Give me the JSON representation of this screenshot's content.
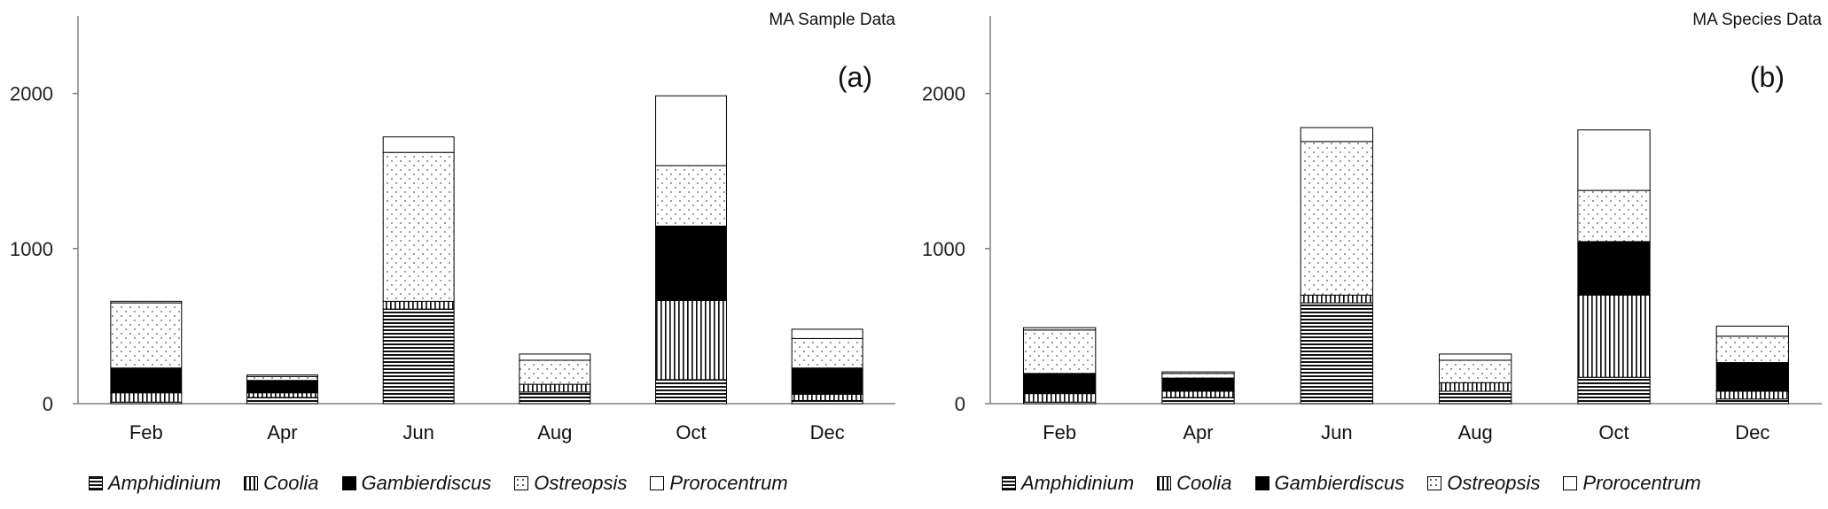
{
  "chart_data": [
    {
      "type": "bar",
      "stacked": true,
      "title": "MA Sample Data",
      "panel_label": "(a)",
      "categories": [
        "Feb",
        "Apr",
        "Jun",
        "Aug",
        "Oct",
        "Dec"
      ],
      "ylim": [
        0,
        2500
      ],
      "yticks": [
        "0",
        "1000",
        "2000"
      ],
      "series": [
        {
          "name": "Amphidinium",
          "values": [
            10,
            40,
            610,
            75,
            155,
            20
          ]
        },
        {
          "name": "Coolia",
          "values": [
            60,
            30,
            50,
            50,
            510,
            40
          ]
        },
        {
          "name": "Gambierdiscus",
          "values": [
            160,
            80,
            0,
            0,
            480,
            170
          ]
        },
        {
          "name": "Ostreopsis",
          "values": [
            420,
            25,
            960,
            155,
            390,
            190
          ]
        },
        {
          "name": "Prorocentrum",
          "values": [
            10,
            10,
            100,
            40,
            450,
            60
          ]
        }
      ]
    },
    {
      "type": "bar",
      "stacked": true,
      "title": "MA Species Data",
      "panel_label": "(b)",
      "categories": [
        "Feb",
        "Apr",
        "Jun",
        "Aug",
        "Oct",
        "Dec"
      ],
      "ylim": [
        0,
        2500
      ],
      "yticks": [
        "0",
        "1000",
        "2000"
      ],
      "series": [
        {
          "name": "Amphidinium",
          "values": [
            10,
            40,
            650,
            80,
            170,
            30
          ]
        },
        {
          "name": "Coolia",
          "values": [
            55,
            40,
            50,
            55,
            530,
            50
          ]
        },
        {
          "name": "Gambierdiscus",
          "values": [
            130,
            85,
            0,
            0,
            345,
            185
          ]
        },
        {
          "name": "Ostreopsis",
          "values": [
            280,
            30,
            990,
            145,
            330,
            170
          ]
        },
        {
          "name": "Prorocentrum",
          "values": [
            15,
            10,
            90,
            40,
            390,
            65
          ]
        }
      ]
    }
  ],
  "legend": [
    {
      "name": "Amphidinium",
      "pattern": "hstripes"
    },
    {
      "name": "Coolia",
      "pattern": "vstripes"
    },
    {
      "name": "Gambierdiscus",
      "pattern": "solid"
    },
    {
      "name": "Ostreopsis",
      "pattern": "dots"
    },
    {
      "name": "Prorocentrum",
      "pattern": "blank"
    }
  ],
  "colors": {
    "ink": "#000000",
    "axis": "#808080",
    "background": "#ffffff"
  }
}
